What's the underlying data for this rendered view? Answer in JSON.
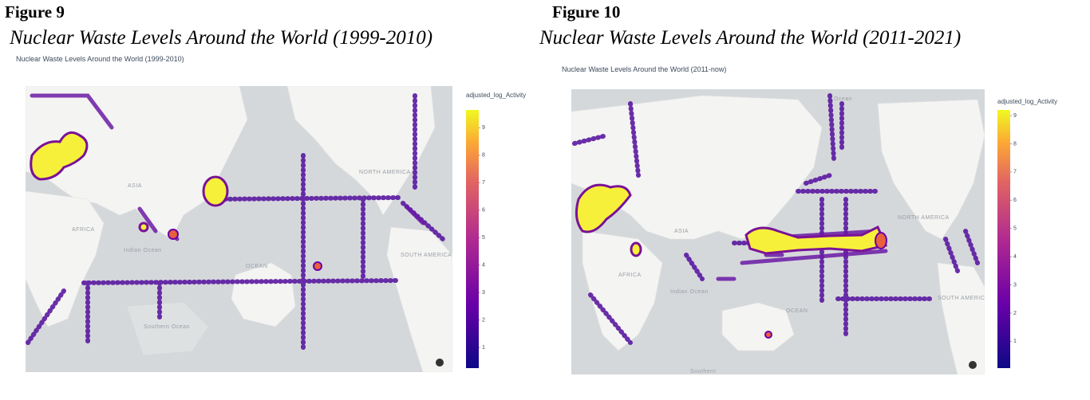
{
  "figures": [
    {
      "label": "Figure 9",
      "caption": "Nuclear Waste Levels Around the World (1999-2010)",
      "plot_title": "Nuclear Waste Levels Around the World (1999-2010)",
      "colorbar": {
        "title": "adjusted_log_Activity",
        "range": [
          0.25,
          9.65
        ],
        "ticks": [
          1,
          2,
          3,
          4,
          5,
          6,
          7,
          8,
          9
        ]
      },
      "map_labels": [
        "ASIA",
        "NORTH AMERICA",
        "AFRICA",
        "Indian Ocean",
        "OCEAN",
        "SOUTH AMERICA",
        "Southern Ocean"
      ]
    },
    {
      "label": "Figure 10",
      "caption": "Nuclear Waste Levels Around the World (2011-2021)",
      "plot_title": "Nuclear Waste Levels Around the World (2011-now)",
      "colorbar": {
        "title": "adjusted_log_Activity",
        "range": [
          0.05,
          9.2
        ],
        "ticks": [
          1,
          2,
          3,
          4,
          5,
          6,
          7,
          8,
          9
        ]
      },
      "map_labels": [
        "Ocean",
        "ASIA",
        "NORTH AMERICA",
        "AFRICA",
        "Indian Ocean",
        "OCEAN",
        "SOUTH AMERICA",
        "Southern"
      ]
    }
  ]
}
